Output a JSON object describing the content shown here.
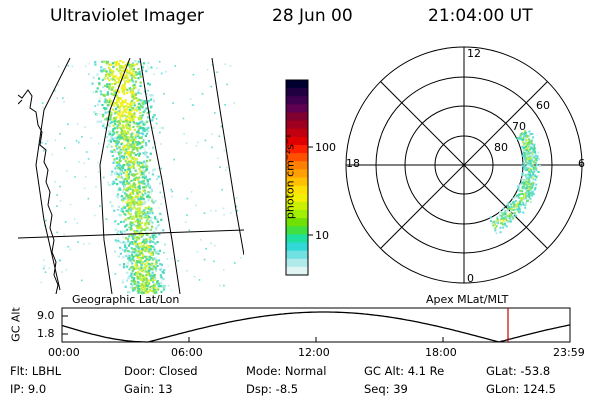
{
  "header": {
    "instrument": "Ultraviolet Imager",
    "date": "28 Jun 00",
    "time": "21:04:00 UT"
  },
  "colorbar": {
    "unit_label": "photon cm⁻²s⁻¹",
    "ticks": [
      "100",
      "10"
    ],
    "colors": [
      "#000030",
      "#200040",
      "#400050",
      "#600050",
      "#800030",
      "#a00020",
      "#c00010",
      "#e00000",
      "#ff2000",
      "#ff5000",
      "#ff8000",
      "#ffa000",
      "#ffc000",
      "#ffe000",
      "#f0f000",
      "#c8f000",
      "#a0f000",
      "#70e000",
      "#40e040",
      "#20e0a0",
      "#30d8d8",
      "#70e0e0",
      "#b0eaea",
      "#e0f4f4"
    ]
  },
  "left_panel": {
    "caption": "Geographic Lat/Lon"
  },
  "polar_panel": {
    "caption": "Apex  MLat/MLT",
    "mlt_labels": [
      "12",
      "18",
      "6",
      "0"
    ],
    "lat_labels": [
      "60",
      "70",
      "80"
    ]
  },
  "altitude_plot": {
    "ylabel": "GC Alt",
    "yticks": [
      "9.0",
      "1.8"
    ],
    "xticks": [
      "00:00",
      "06:00",
      "12:00",
      "18:00",
      "23:59"
    ]
  },
  "status": {
    "flt": "Flt: LBHL",
    "ip": "IP:  9.0",
    "door": "Door: Closed",
    "gain": "Gain: 13",
    "mode": "Mode: Normal",
    "dsp": "Dsp:     -8.5",
    "gc_alt": "GC Alt: 4.1 Re",
    "seq": "Seq: 39",
    "glat": "GLat:  -53.8",
    "glon": "GLon: 124.5"
  }
}
